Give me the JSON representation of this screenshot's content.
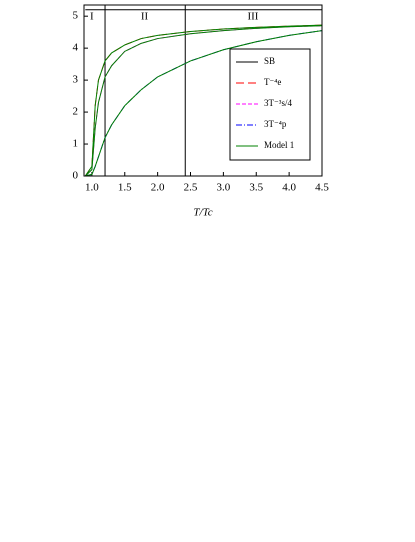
{
  "chart_data": {
    "type": "line",
    "x_label": "T/Tc",
    "x": [
      0.9,
      1.0,
      1.05,
      1.1,
      1.2,
      1.3,
      1.5,
      1.75,
      2.0,
      2.5,
      3.0,
      3.5,
      4.0,
      4.5
    ],
    "series": [
      {
        "name": "SB",
        "color": "#000000",
        "dash": "none",
        "values": [
          5.2,
          5.2,
          5.2,
          5.2,
          5.2,
          5.2,
          5.2,
          5.2,
          5.2,
          5.2,
          5.2,
          5.2,
          5.2,
          5.2
        ]
      },
      {
        "name": "T⁻⁴e",
        "color": "#ff0000",
        "dash": "8 4",
        "values": [
          0,
          0.3,
          2.2,
          3.0,
          3.6,
          3.85,
          4.1,
          4.3,
          4.4,
          4.52,
          4.6,
          4.65,
          4.69,
          4.72
        ]
      },
      {
        "name": "3T⁻³s/4",
        "color": "#ff00ff",
        "dash": "4 2",
        "values": [
          0,
          0.2,
          1.5,
          2.3,
          3.1,
          3.45,
          3.9,
          4.15,
          4.3,
          4.45,
          4.55,
          4.62,
          4.67,
          4.7
        ]
      },
      {
        "name": "3T⁻⁴p",
        "color": "#0000ff",
        "dash": "6 2 1 2",
        "values": [
          0,
          0.05,
          0.3,
          0.6,
          1.2,
          1.6,
          2.2,
          2.7,
          3.1,
          3.6,
          3.95,
          4.2,
          4.4,
          4.55
        ]
      },
      {
        "name": "Model 1",
        "color": "#008000",
        "dash": "none",
        "values": [
          0,
          0.3,
          2.2,
          3.0,
          3.6,
          3.85,
          4.1,
          4.3,
          4.4,
          4.52,
          4.6,
          4.65,
          4.69,
          4.72
        ]
      },
      {
        "color": "#008000",
        "dash": "none",
        "values": [
          0,
          0.2,
          1.5,
          2.3,
          3.1,
          3.45,
          3.9,
          4.15,
          4.3,
          4.45,
          4.55,
          4.62,
          4.67,
          4.7
        ]
      },
      {
        "color": "#008000",
        "dash": "none",
        "values": [
          0,
          0.05,
          0.3,
          0.6,
          1.2,
          1.6,
          2.2,
          2.7,
          3.1,
          3.6,
          3.95,
          4.2,
          4.4,
          4.55
        ]
      }
    ],
    "region_lines": [
      1.2,
      2.42
    ],
    "regions": [
      {
        "label": "I",
        "x": 1.0
      },
      {
        "label": "II",
        "x": 1.8
      },
      {
        "label": "III",
        "x": 3.45
      }
    ],
    "xlim": [
      0.88,
      4.5
    ],
    "ylim": [
      0,
      5.35
    ],
    "xticks": [
      {
        "value": 1,
        "label": "1.0"
      },
      1.5,
      {
        "value": 2,
        "label": "2.0"
      },
      2.5,
      {
        "value": 3,
        "label": "3.0"
      },
      3.5,
      {
        "value": 4,
        "label": "4.0"
      },
      4.5
    ],
    "yticks": [
      0,
      1,
      2,
      3,
      4,
      5
    ],
    "legend": "lower-right"
  }
}
